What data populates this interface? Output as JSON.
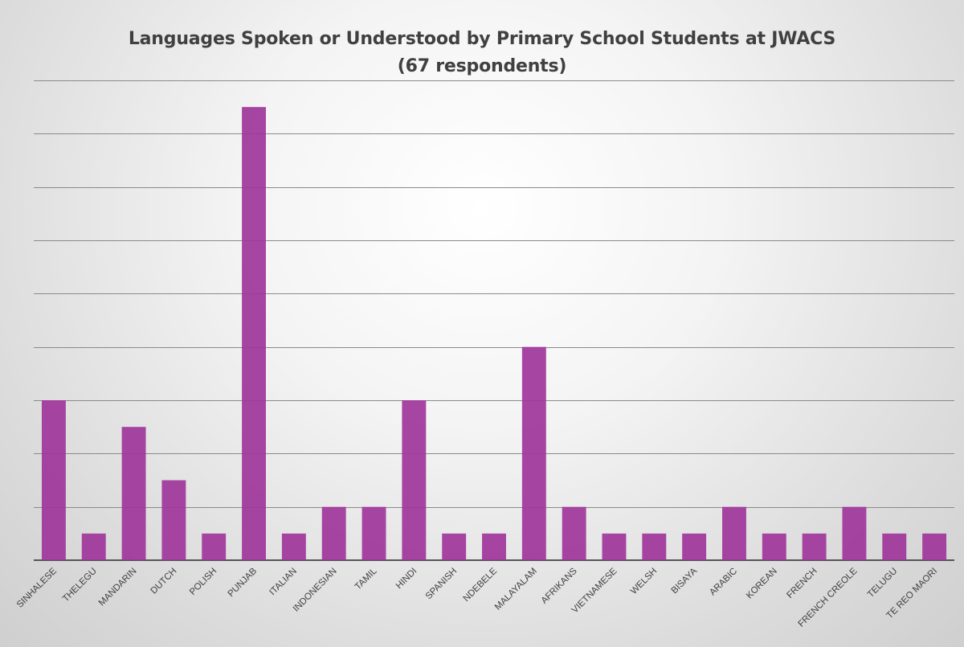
{
  "chart_data": {
    "type": "bar",
    "title": "Languages Spoken or Understood by Primary School Students at JWACS",
    "subtitle": "(67 respondents)",
    "xlabel": "",
    "ylabel": "",
    "categories": [
      "SINHALESE",
      "THELEGU",
      "MANDARIN",
      "DUTCH",
      "POLISH",
      "PUNJAB",
      "ITALIAN",
      "INDONESIAN",
      "TAMIL",
      "HINDI",
      "SPANISH",
      "NDEBELE",
      "MALAYALAM",
      "AFRIKANS",
      "VIETNAMESE",
      "WELSH",
      "BISAYA",
      "ARABIC",
      "KOREAN",
      "FRENCH",
      "FRENCH CREOLE",
      "TELUGU",
      "TE REO MAORI"
    ],
    "values": [
      6,
      1,
      5,
      3,
      1,
      17,
      1,
      2,
      2,
      6,
      1,
      1,
      8,
      2,
      1,
      1,
      1,
      2,
      1,
      1,
      2,
      1,
      1
    ],
    "ylim": [
      0,
      18
    ],
    "y_gridline_step": 2,
    "grid": true,
    "y_tick_labels_shown": false,
    "legend": "none",
    "bar_color": "#a0369a"
  }
}
